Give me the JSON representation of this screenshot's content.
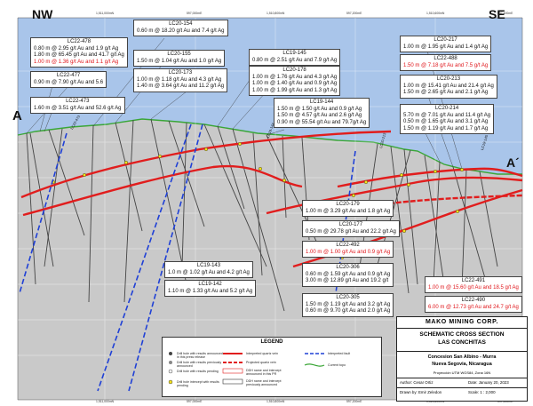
{
  "section": {
    "nw": "NW",
    "se": "SE",
    "a_left": "A",
    "a_right": "A´",
    "top_ticks": [
      "1,511,000mN",
      "597,000mE",
      "1,510,800mN",
      "597,200mE",
      "1,510,600mN",
      "597,400mE"
    ],
    "bottom_ticks": [
      "1,511,000mN",
      "597,000mE",
      "1,510,800mN",
      "597,200mE",
      "1,510,600mN",
      "597,400mE"
    ]
  },
  "holes_top": [
    {
      "id": "LC22-478",
      "lines": [
        {
          "t": "0.80 m @ 2.95 g/t Au and 1.9 g/t Ag",
          "red": false
        },
        {
          "t": "1.80 m @ 65.45 g/t Au and 41.7 g/t Ag",
          "red": false
        },
        {
          "t": "1.00 m @ 1.36 g/t Au and 1.1 g/t Ag",
          "red": true
        }
      ]
    },
    {
      "id": "LC22-477",
      "lines": [
        {
          "t": "0.90 m @ 7.90 g/t Au and 5.6",
          "red": false
        }
      ]
    },
    {
      "id": "LC22-473",
      "lines": [
        {
          "t": "1.60 m @ 3.51 g/t Au and 52.6 g/t Ag",
          "red": false
        }
      ]
    },
    {
      "id": "LC20-154",
      "lines": [
        {
          "t": "0.60 m @ 18.20 g/t Au and 7.4 g/t Ag",
          "red": false
        }
      ]
    },
    {
      "id": "LC20-155",
      "lines": [
        {
          "t": "1.50 m @ 1.04 g/t Au and 1.0 g/t Ag",
          "red": false
        }
      ]
    },
    {
      "id": "LC20-173",
      "lines": [
        {
          "t": "1.00 m @ 1.18 g/t Au and 4.3 g/t Ag",
          "red": false
        },
        {
          "t": "1.40 m @ 3.64 g/t Au and 11.2 g/t Ag",
          "red": false
        }
      ]
    },
    {
      "id": "LC19-145",
      "lines": [
        {
          "t": "0.80 m @ 2.51 g/t Au and 7.9 g/t Ag",
          "red": false
        }
      ]
    },
    {
      "id": "LC20-178",
      "lines": [
        {
          "t": "1.00 m @ 1.76 g/t Au and 4.3 g/t Ag",
          "red": false
        },
        {
          "t": "1.00 m @ 1.40 g/t Au and 0.9 g/t Ag",
          "red": false
        },
        {
          "t": "1.00 m @ 1.99 g/t Au and 1.3 g/t Ag",
          "red": false
        }
      ]
    },
    {
      "id": "LC19-144",
      "lines": [
        {
          "t": "1.50 m @ 1.50 g/t Au and 0.9 g/t Ag",
          "red": false
        },
        {
          "t": "1.50 m @ 4.57 g/t Au and 2.6 g/t Ag",
          "red": false
        },
        {
          "t": "0.90 m @ 55.54 g/t Au and 79.7g/t Ag",
          "red": false
        }
      ]
    },
    {
      "id": "LC20-217",
      "lines": [
        {
          "t": "1.00 m @ 1.95 g/t Au and 1.4 g/t Ag",
          "red": false
        }
      ]
    },
    {
      "id": "LC22-488",
      "lines": [
        {
          "t": "1.50 m @ 7.18 g/t Au and 7.5 g/t Ag",
          "red": true
        }
      ]
    },
    {
      "id": "LC20-213",
      "lines": [
        {
          "t": "1.00 m @ 15.41 g/t Au and 21.4 g/t Ag",
          "red": false
        },
        {
          "t": "1.50 m @ 2.65 g/t Au and 2.1 g/t Ag",
          "red": false
        }
      ]
    },
    {
      "id": "LC20-214",
      "lines": [
        {
          "t": "5.70 m @ 7.01 g/t Au and 11.4 g/t Ag",
          "red": false
        },
        {
          "t": "0.50 m @ 1.65 g/t Au and 3.1 g/t Ag",
          "red": false
        },
        {
          "t": "1.50 m @ 1.19 g/t Au and 1.7 g/t Ag",
          "red": false
        }
      ]
    }
  ],
  "holes_low": [
    {
      "id": "LC20-179",
      "lines": [
        {
          "t": "1.00 m @ 3.29 g/t Au and 1.8 g/t Ag",
          "red": false
        }
      ]
    },
    {
      "id": "LC20-177",
      "lines": [
        {
          "t": "0.50 m @ 29.78 g/t Au and 22.2 g/t Ag",
          "red": false
        }
      ]
    },
    {
      "id": "LC22-492",
      "lines": [
        {
          "t": "1.00 m @ 1.00 g/t Au and 0.9 g/t Ag",
          "red": true
        }
      ]
    },
    {
      "id": "LC20-306",
      "lines": [
        {
          "t": "0.60 m @ 1.59 g/t Au and 0.9 g/t Ag",
          "red": false
        },
        {
          "t": "3.00 m @ 12.89 g/t Au and 19.2 g/t",
          "red": false
        }
      ]
    },
    {
      "id": "LC20-305",
      "lines": [
        {
          "t": "1.50 m @ 1.19 g/t Au and 3.2 g/t Ag",
          "red": false
        },
        {
          "t": "0.60 m @ 9.70 g/t Au and 2.0 g/t Ag",
          "red": false
        }
      ]
    },
    {
      "id": "LC19-143",
      "lines": [
        {
          "t": "1.0 m @ 1.02 g/t Au and 4.2 g/t Ag",
          "red": false
        }
      ]
    },
    {
      "id": "LC19-142",
      "lines": [
        {
          "t": "1.10 m @ 1.33 g/t Au and 5.2 g/t Ag",
          "red": false
        }
      ]
    },
    {
      "id": "LC22-491",
      "lines": [
        {
          "t": "1.00 m @ 15.60 g/t Au and 18.5 g/t Ag",
          "red": true
        }
      ]
    },
    {
      "id": "LC22-490",
      "lines": [
        {
          "t": "6.00 m @ 12.73 g/t Au and 24.7 g/t Ag",
          "red": true
        }
      ]
    }
  ],
  "trace_labels": [
    "LC22-473",
    "LC19-144",
    "LC20-213",
    "LC19-145"
  ],
  "legend": {
    "title": "LEGEND",
    "items": [
      "Drill hole with results announced in this press release",
      "Drill hole with results previously announced",
      "Drill hole with results pending",
      "Drill hole intercept with results pending",
      "Interpreted quartz vein",
      "Projected quartz vein",
      "DDH name and intercept announced in this PR",
      "DDH name and intercept previously announced",
      "Interpreted fault",
      "Current topo"
    ]
  },
  "title_block": {
    "company": "MAKO MINING CORP.",
    "title1": "SCHEMATIC CROSS SECTION",
    "title2": "LAS CONCHITAS",
    "loc1": "Concesion San Albino - Murra",
    "loc2": "Nueva Segovia, Nicaragua",
    "proj": "Proyección UTM WGS84, Zona 16N",
    "author": "Author: Cesar Ortiz",
    "date": "Date: January 20, 2023",
    "drawn": "Drawn by: Emir Zeledon",
    "scale": "Scale: 1 : 2,000"
  },
  "colors": {
    "sky": "#a9c5ea",
    "ground": "#c9c9c9",
    "topo": "#3aa637",
    "vein": "#e11d1d",
    "fault": "#1f40d6",
    "hole": "#444444"
  }
}
